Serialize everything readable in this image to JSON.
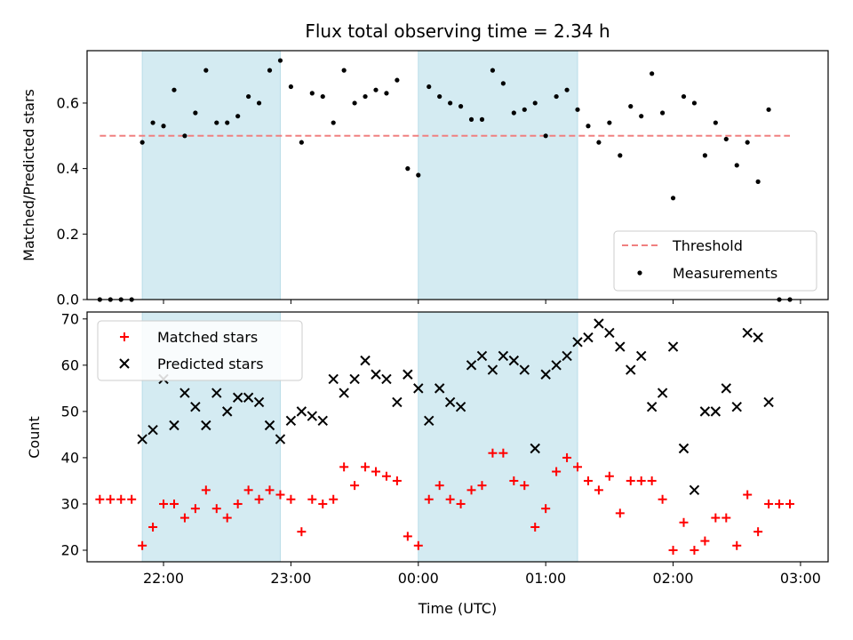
{
  "chart_data": [
    {
      "type": "scatter",
      "title": "Flux total observing time = 2.34 h",
      "ylabel": "Matched/Predicted stars",
      "xlabel": "",
      "xlim": [
        "21:24",
        "03:13"
      ],
      "ylim": [
        0,
        0.76
      ],
      "yticks": [
        0.0,
        0.2,
        0.4,
        0.6
      ],
      "ytick_labels": [
        "0.0",
        "0.2",
        "0.4",
        "0.6"
      ],
      "xticks": [
        "22:00",
        "23:00",
        "00:00",
        "01:00",
        "02:00",
        "03:00"
      ],
      "shaded_intervals": [
        [
          "21:50",
          "22:55"
        ],
        [
          "00:00",
          "01:15"
        ]
      ],
      "shade_color": "#d4ebf2",
      "legend": {
        "position": "lower-right",
        "entries": [
          "Threshold",
          "Measurements"
        ]
      },
      "threshold": {
        "name": "Threshold",
        "y": 0.5,
        "x_from": "21:30",
        "x_to": "02:55",
        "color": "#f08080",
        "style": "dashed"
      },
      "series": [
        {
          "name": "Measurements",
          "color": "#000000",
          "marker": "dot",
          "x": [
            "21:30",
            "21:35",
            "21:40",
            "21:45",
            "21:50",
            "21:55",
            "22:00",
            "22:05",
            "22:10",
            "22:15",
            "22:20",
            "22:25",
            "22:30",
            "22:35",
            "22:40",
            "22:45",
            "22:50",
            "22:55",
            "23:00",
            "23:05",
            "23:10",
            "23:15",
            "23:20",
            "23:25",
            "23:30",
            "23:35",
            "23:40",
            "23:45",
            "23:50",
            "23:55",
            "00:00",
            "00:05",
            "00:10",
            "00:15",
            "00:20",
            "00:25",
            "00:30",
            "00:35",
            "00:40",
            "00:45",
            "00:50",
            "00:55",
            "01:00",
            "01:05",
            "01:10",
            "01:15",
            "01:20",
            "01:25",
            "01:30",
            "01:35",
            "01:40",
            "01:45",
            "01:50",
            "01:55",
            "02:00",
            "02:05",
            "02:10",
            "02:15",
            "02:20",
            "02:25",
            "02:30",
            "02:35",
            "02:40",
            "02:45",
            "02:50",
            "02:55"
          ],
          "values": [
            0.0,
            0.0,
            0.0,
            0.0,
            0.48,
            0.54,
            0.53,
            0.64,
            0.5,
            0.57,
            0.7,
            0.54,
            0.54,
            0.56,
            0.62,
            0.6,
            0.7,
            0.73,
            0.65,
            0.48,
            0.63,
            0.62,
            0.54,
            0.7,
            0.6,
            0.62,
            0.64,
            0.63,
            0.67,
            0.4,
            0.38,
            0.65,
            0.62,
            0.6,
            0.59,
            0.55,
            0.55,
            0.7,
            0.66,
            0.57,
            0.58,
            0.6,
            0.5,
            0.62,
            0.64,
            0.58,
            0.53,
            0.48,
            0.54,
            0.44,
            0.59,
            0.56,
            0.69,
            0.57,
            0.31,
            0.62,
            0.6,
            0.44,
            0.54,
            0.49,
            0.41,
            0.48,
            0.36,
            0.58,
            0.0,
            0.0
          ]
        }
      ]
    },
    {
      "type": "scatter",
      "title": "",
      "ylabel": "Count",
      "xlabel": "Time (UTC)",
      "xlim": [
        "21:24",
        "03:13"
      ],
      "ylim": [
        17.5,
        71.5
      ],
      "yticks": [
        20,
        30,
        40,
        50,
        60,
        70
      ],
      "xticks": [
        "22:00",
        "23:00",
        "00:00",
        "01:00",
        "02:00",
        "03:00"
      ],
      "shaded_intervals": [
        [
          "21:50",
          "22:55"
        ],
        [
          "00:00",
          "01:15"
        ]
      ],
      "shade_color": "#d4ebf2",
      "legend": {
        "position": "upper-left",
        "entries": [
          "Matched stars",
          "Predicted stars"
        ]
      },
      "series": [
        {
          "name": "Matched stars",
          "color": "#ff0000",
          "marker": "plus",
          "x": [
            "21:30",
            "21:35",
            "21:40",
            "21:45",
            "21:50",
            "21:55",
            "22:00",
            "22:05",
            "22:10",
            "22:15",
            "22:20",
            "22:25",
            "22:30",
            "22:35",
            "22:40",
            "22:45",
            "22:50",
            "22:55",
            "23:00",
            "23:05",
            "23:10",
            "23:15",
            "23:20",
            "23:25",
            "23:30",
            "23:35",
            "23:40",
            "23:45",
            "23:50",
            "23:55",
            "00:00",
            "00:05",
            "00:10",
            "00:15",
            "00:20",
            "00:25",
            "00:30",
            "00:35",
            "00:40",
            "00:45",
            "00:50",
            "00:55",
            "01:00",
            "01:05",
            "01:10",
            "01:15",
            "01:20",
            "01:25",
            "01:30",
            "01:35",
            "01:40",
            "01:45",
            "01:50",
            "01:55",
            "02:00",
            "02:05",
            "02:10",
            "02:15",
            "02:20",
            "02:25",
            "02:30",
            "02:35",
            "02:40",
            "02:45",
            "02:50",
            "02:55"
          ],
          "values": [
            31,
            31,
            31,
            31,
            21,
            25,
            30,
            30,
            27,
            29,
            33,
            29,
            27,
            30,
            33,
            31,
            33,
            32,
            31,
            24,
            31,
            30,
            31,
            38,
            34,
            38,
            37,
            36,
            35,
            23,
            21,
            31,
            34,
            31,
            30,
            33,
            34,
            41,
            41,
            35,
            34,
            25,
            29,
            37,
            40,
            38,
            35,
            33,
            36,
            28,
            35,
            35,
            35,
            31,
            20,
            26,
            20,
            22,
            27,
            27,
            21,
            32,
            24,
            30,
            30,
            30
          ]
        },
        {
          "name": "Predicted stars",
          "color": "#000000",
          "marker": "x",
          "x": [
            "21:50",
            "21:55",
            "22:00",
            "22:05",
            "22:10",
            "22:15",
            "22:20",
            "22:25",
            "22:30",
            "22:35",
            "22:40",
            "22:45",
            "22:50",
            "22:55",
            "23:00",
            "23:05",
            "23:10",
            "23:15",
            "23:20",
            "23:25",
            "23:30",
            "23:35",
            "23:40",
            "23:45",
            "23:50",
            "23:55",
            "00:00",
            "00:05",
            "00:10",
            "00:15",
            "00:20",
            "00:25",
            "00:30",
            "00:35",
            "00:40",
            "00:45",
            "00:50",
            "00:55",
            "01:00",
            "01:05",
            "01:10",
            "01:15",
            "01:20",
            "01:25",
            "01:30",
            "01:35",
            "01:40",
            "01:45",
            "01:50",
            "01:55",
            "02:00",
            "02:05",
            "02:10",
            "02:15",
            "02:20",
            "02:25",
            "02:30",
            "02:35",
            "02:40",
            "02:45"
          ],
          "values": [
            44,
            46,
            57,
            47,
            54,
            51,
            47,
            54,
            50,
            53,
            53,
            52,
            47,
            44,
            48,
            50,
            49,
            48,
            57,
            54,
            57,
            61,
            58,
            57,
            52,
            58,
            55,
            48,
            55,
            52,
            51,
            60,
            62,
            59,
            62,
            61,
            59,
            42,
            58,
            60,
            62,
            65,
            66,
            69,
            67,
            64,
            59,
            62,
            51,
            54,
            64,
            42,
            33,
            50,
            50,
            55,
            51,
            67,
            66,
            52
          ]
        }
      ]
    }
  ]
}
